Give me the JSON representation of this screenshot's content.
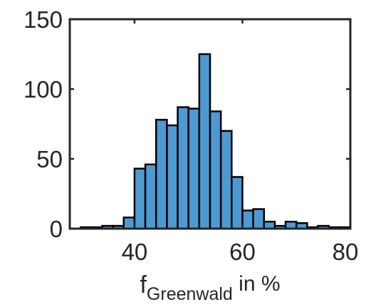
{
  "chart_data": {
    "type": "bar",
    "subtype": "histogram",
    "bar_color": "#4d9ad3",
    "edge_color": "#000000",
    "xlabel": {
      "main": "f",
      "subscript": "Greenwald",
      "suffix": " in %"
    },
    "ylabel": "",
    "xlim": [
      28,
      80
    ],
    "ylim": [
      0,
      150
    ],
    "xticks": [
      40,
      60,
      80
    ],
    "yticks": [
      0,
      50,
      100,
      150
    ],
    "grid": false,
    "bin_edges": [
      28,
      30,
      32,
      34,
      36,
      38,
      40,
      42,
      44,
      46,
      48,
      50,
      52,
      54,
      56,
      58,
      60,
      62,
      64,
      66,
      68,
      70,
      72,
      74,
      76,
      78,
      80
    ],
    "counts": [
      0,
      1,
      1,
      2,
      2,
      8,
      43,
      46,
      78,
      74,
      87,
      86,
      125,
      84,
      70,
      37,
      13,
      14,
      5,
      2,
      5,
      4,
      1,
      2,
      1,
      1
    ]
  }
}
